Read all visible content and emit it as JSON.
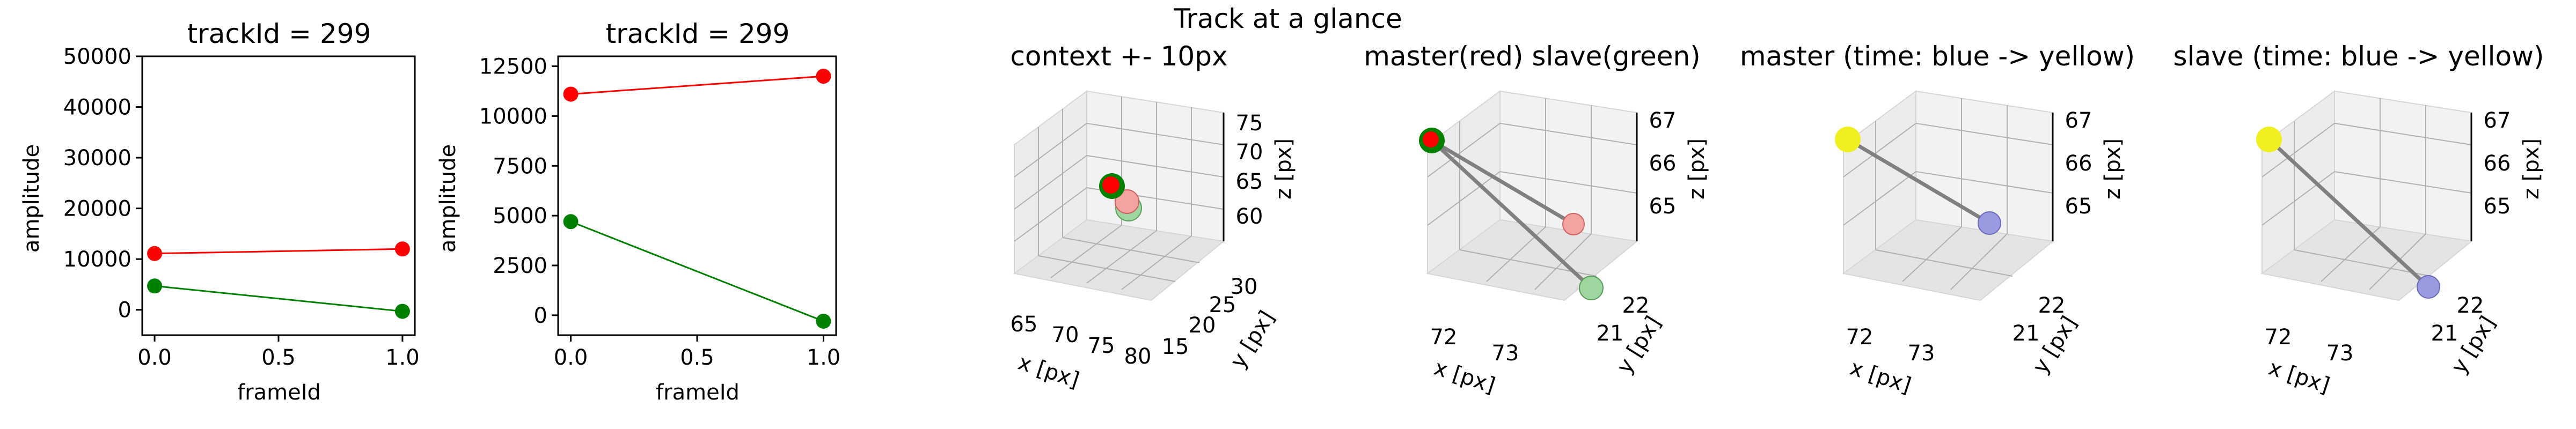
{
  "suptitle": "Track at a glance",
  "colors": {
    "master": "#ff0000",
    "slave": "#008000",
    "master_light": "#f4a3a3",
    "slave_light": "#9fd59f",
    "track_line": "#808080",
    "time_start": "#f0f020",
    "time_end": "#9a9ae0"
  },
  "chart_data": [
    {
      "type": "line",
      "title": "trackId = 299",
      "xlabel": "frameId",
      "ylabel": "amplitude",
      "xlim": [
        -0.05,
        1.05
      ],
      "ylim": [
        -5000,
        50000
      ],
      "xticks": [
        0.0,
        0.5,
        1.0
      ],
      "xticklabels": [
        "0.0",
        "0.5",
        "1.0"
      ],
      "yticks": [
        0,
        10000,
        20000,
        30000,
        40000,
        50000
      ],
      "yticklabels": [
        "0",
        "10000",
        "20000",
        "30000",
        "40000",
        "50000"
      ],
      "x": [
        0,
        1
      ],
      "series": [
        {
          "color": "#ff0000",
          "values": [
            11100,
            12000
          ]
        },
        {
          "color": "#008000",
          "values": [
            4700,
            -300
          ]
        }
      ]
    },
    {
      "type": "line",
      "title": "trackId = 299",
      "xlabel": "frameId",
      "ylabel": "amplitude",
      "xlim": [
        -0.05,
        1.05
      ],
      "ylim": [
        -1000,
        13000
      ],
      "xticks": [
        0.0,
        0.5,
        1.0
      ],
      "xticklabels": [
        "0.0",
        "0.5",
        "1.0"
      ],
      "yticks": [
        0,
        2500,
        5000,
        7500,
        10000,
        12500
      ],
      "yticklabels": [
        "0",
        "2500",
        "5000",
        "7500",
        "10000",
        "12500"
      ],
      "x": [
        0,
        1
      ],
      "series": [
        {
          "color": "#ff0000",
          "values": [
            11100,
            12000
          ]
        },
        {
          "color": "#008000",
          "values": [
            4700,
            -300
          ]
        }
      ]
    },
    {
      "type": "scatter",
      "title": "context +- 10px",
      "xlabel": "x [px]",
      "ylabel": "y [px]",
      "zlabel": "z [px]",
      "xticklabels": [
        "65",
        "70",
        "75",
        "80"
      ],
      "yticklabels": [
        "15",
        "20",
        "25",
        "30"
      ],
      "zticklabels": [
        "60",
        "65",
        "70",
        "75"
      ]
    },
    {
      "type": "scatter",
      "title": "master(red) slave(green)",
      "xlabel": "x [px]",
      "ylabel": "y [px]",
      "zlabel": "z [px]",
      "xticklabels": [
        "72",
        "73"
      ],
      "yticklabels": [
        "21",
        "22"
      ],
      "zticklabels": [
        "65",
        "66",
        "67"
      ]
    },
    {
      "type": "scatter",
      "title": "master (time: blue -> yellow)",
      "xlabel": "x [px]",
      "ylabel": "y [px]",
      "zlabel": "z [px]",
      "xticklabels": [
        "72",
        "73"
      ],
      "yticklabels": [
        "21",
        "22"
      ],
      "zticklabels": [
        "65",
        "66",
        "67"
      ]
    },
    {
      "type": "scatter",
      "title": "slave (time: blue -> yellow)",
      "xlabel": "x [px]",
      "ylabel": "y [px]",
      "zlabel": "z [px]",
      "xticklabels": [
        "72",
        "73"
      ],
      "yticklabels": [
        "21",
        "22"
      ],
      "zticklabels": [
        "65",
        "66",
        "67"
      ]
    }
  ]
}
